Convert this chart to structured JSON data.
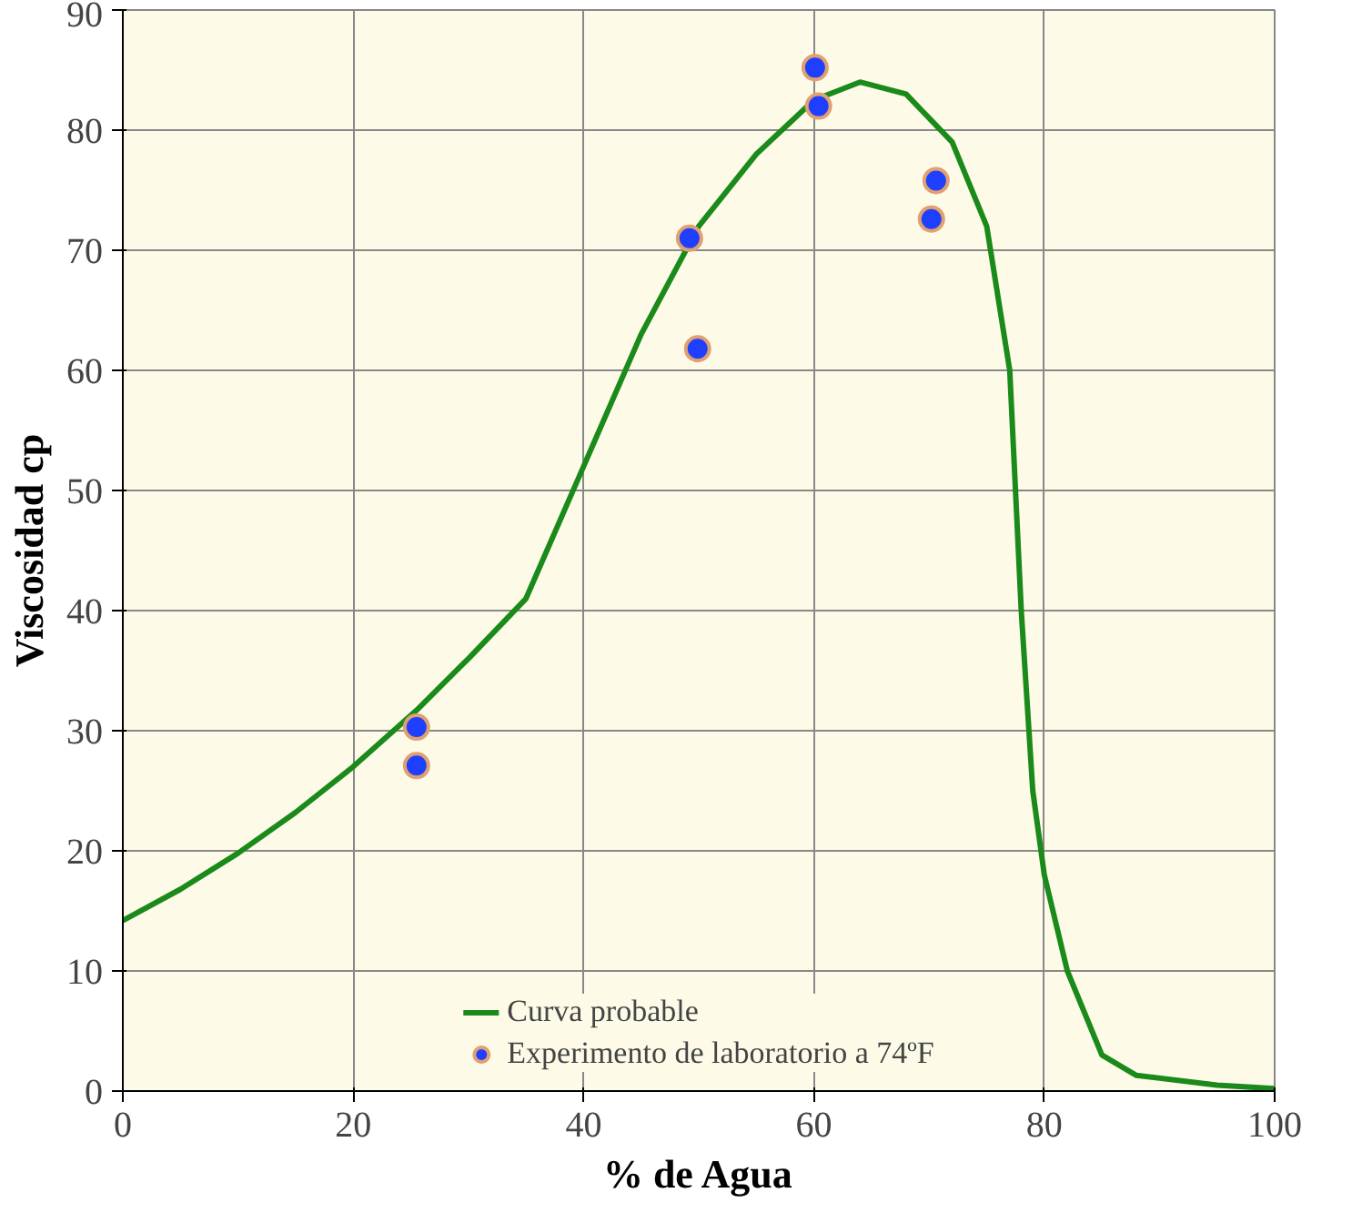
{
  "chart_data": {
    "type": "scatter",
    "xlabel": "% de Agua",
    "ylabel": "Viscosidad cp",
    "xlim": [
      0,
      100
    ],
    "xticks": [
      0,
      20,
      40,
      60,
      80,
      100
    ],
    "ylim": [
      0,
      90
    ],
    "yticks": [
      0,
      10,
      20,
      30,
      40,
      50,
      60,
      70,
      80,
      90
    ],
    "grid": true,
    "legend": "bottom",
    "series": [
      {
        "name": "Curva probable",
        "type": "line",
        "color": "#1a8a1a",
        "marker": "none",
        "line_style": "solid",
        "x": [
          0,
          5,
          10,
          15,
          20,
          25.5,
          30,
          35,
          40,
          45,
          50,
          55,
          60,
          64,
          68,
          72,
          75,
          77,
          78,
          79,
          80,
          82,
          85,
          88,
          95,
          100
        ],
        "values": [
          14.2,
          16.8,
          19.8,
          23.2,
          27,
          31.7,
          36,
          41,
          52,
          63,
          72,
          78,
          82.5,
          84,
          83,
          79,
          72,
          60,
          40,
          25,
          18,
          10,
          3,
          1.3,
          0.5,
          0.2
        ]
      },
      {
        "name": "Experimento de laboratorio a 74ºF",
        "color": "#1f3fff",
        "marker": "circle",
        "x": [
          25.5,
          25.5,
          49.2,
          49.9,
          60.1,
          60.4,
          70.6,
          70.2
        ],
        "values": [
          30.3,
          27.1,
          71,
          61.8,
          85.2,
          82,
          75.8,
          72.6
        ]
      }
    ]
  }
}
